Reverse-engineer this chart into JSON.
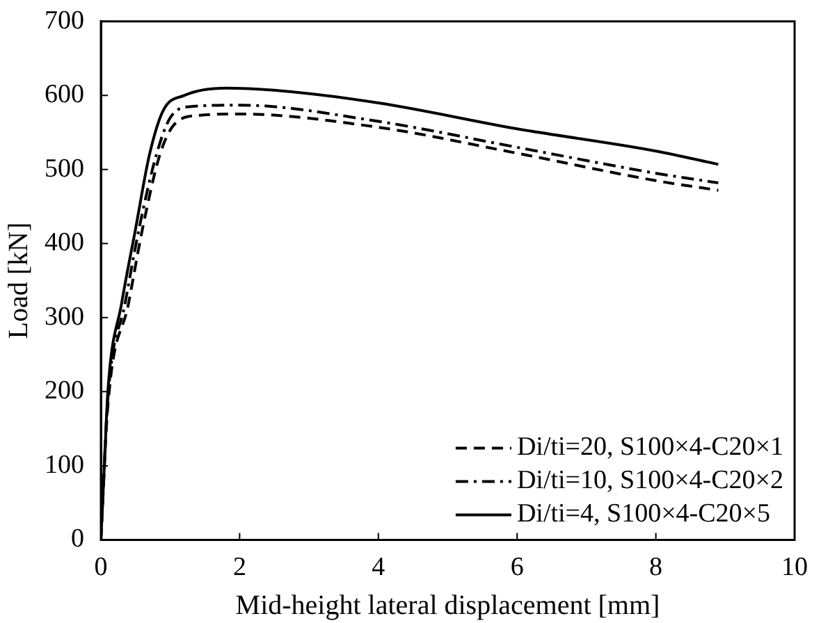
{
  "chart_data": {
    "type": "line",
    "xlabel": "Mid-height lateral displacement [mm]",
    "ylabel": "Load [kN]",
    "xlim": [
      0,
      10
    ],
    "xticks": [
      0,
      2,
      4,
      6,
      8,
      10
    ],
    "ylim": [
      0,
      700
    ],
    "yticks": [
      0,
      100,
      200,
      300,
      400,
      500,
      600,
      700
    ],
    "legend": "bottom right",
    "grid": false,
    "marker": "none",
    "series": [
      {
        "name": "Di/ti=20, S100×4-C20×1",
        "color": "#000000",
        "line_style": "dashed",
        "x": [
          0,
          0.1,
          0.4,
          0.6,
          0.85,
          1.05,
          1.4,
          2,
          4,
          6,
          8,
          8.9
        ],
        "values": [
          0,
          180,
          320,
          420,
          520,
          560,
          573,
          575,
          557,
          522,
          485,
          472
        ]
      },
      {
        "name": "Di/ti=10, S100×4-C20×2",
        "color": "#000000",
        "line_style": "dashdot",
        "x": [
          0,
          0.1,
          0.35,
          0.55,
          0.8,
          1,
          1.3,
          2,
          4,
          6,
          8,
          8.9
        ],
        "values": [
          0,
          190,
          320,
          420,
          520,
          570,
          585,
          587,
          565,
          530,
          495,
          482
        ]
      },
      {
        "name": "Di/ti=4, S100×4-C20×5",
        "color": "#000000",
        "line_style": "solid",
        "x": [
          0,
          0.05,
          0.1,
          0.3,
          0.5,
          0.7,
          0.9,
          1.2,
          1.8,
          2.5,
          4,
          6,
          8,
          8.9
        ],
        "values": [
          0,
          100,
          200,
          320,
          420,
          520,
          580,
          600,
          610,
          607,
          590,
          555,
          525,
          507
        ]
      }
    ]
  }
}
